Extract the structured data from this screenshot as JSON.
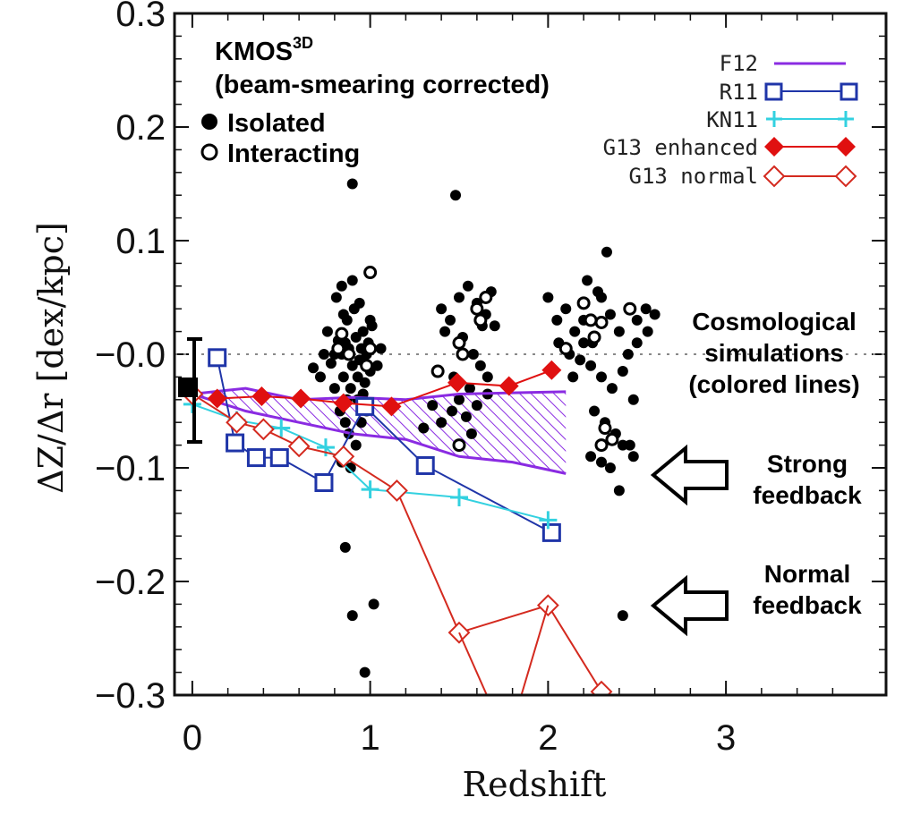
{
  "chart_data": {
    "type": "scatter",
    "xlabel": "Redshift",
    "ylabel": "ΔZ/Δr [dex/kpc]",
    "xlim": [
      -0.1,
      3.9
    ],
    "ylim": [
      -0.3,
      0.3
    ],
    "xticks": [
      "0",
      "1",
      "2",
      "3"
    ],
    "yticks": [
      "0.3",
      "0.2",
      "0.1",
      "−0.0",
      "−0.1",
      "−0.2",
      "−0.3"
    ],
    "survey_name": "KMOS",
    "survey_sup": "3D",
    "survey_note": "(beam-smearing corrected)",
    "marker_legend": [
      "Isolated",
      "Interacting"
    ],
    "annotations": {
      "cosmo": [
        "Cosmological",
        "simulations",
        "(colored lines)"
      ],
      "strong": [
        "Strong",
        "feedback"
      ],
      "normal": [
        "Normal",
        "feedback"
      ]
    },
    "colors": {
      "F12": "#8a2be2",
      "R11": "#1f35a8",
      "KN11": "#33d1e0",
      "G13_enhanced": "#e01010",
      "G13_normal": "#d42a1f"
    },
    "series": [
      {
        "name": "F12",
        "marker": "none",
        "x": [
          0.0,
          0.3,
          0.6,
          0.9,
          1.2,
          1.5,
          1.8,
          2.1
        ],
        "y": [
          -0.035,
          -0.03,
          -0.04,
          -0.038,
          -0.04,
          -0.035,
          -0.034,
          -0.033
        ]
      },
      {
        "name": "F12",
        "marker": "none",
        "x": [
          0.0,
          0.3,
          0.6,
          0.9,
          1.2,
          1.5,
          1.8,
          2.1
        ],
        "y": [
          -0.035,
          -0.05,
          -0.06,
          -0.07,
          -0.075,
          -0.09,
          -0.095,
          -0.105
        ]
      },
      {
        "name": "R11",
        "marker": "open-square",
        "x": [
          0.14,
          0.24,
          0.36,
          0.49,
          0.74,
          0.97,
          1.31,
          2.02
        ],
        "y": [
          -0.003,
          -0.078,
          -0.091,
          -0.091,
          -0.113,
          -0.046,
          -0.098,
          -0.157
        ]
      },
      {
        "name": "KN11",
        "marker": "plus",
        "x": [
          0.0,
          0.25,
          0.5,
          0.75,
          1.0,
          1.5,
          2.0
        ],
        "y": [
          -0.044,
          -0.058,
          -0.065,
          -0.082,
          -0.119,
          -0.126,
          -0.146
        ]
      },
      {
        "name": "G13 enhanced",
        "marker": "filled-diamond",
        "x": [
          0.14,
          0.39,
          0.61,
          0.85,
          1.12,
          1.49,
          1.78,
          2.02
        ],
        "y": [
          -0.039,
          -0.037,
          -0.039,
          -0.043,
          -0.046,
          -0.025,
          -0.028,
          -0.014
        ]
      },
      {
        "name": "G13 normal",
        "marker": "open-diamond",
        "x": [
          0.0,
          0.25,
          0.4,
          0.6,
          0.85,
          1.15,
          1.5,
          2.0,
          2.3
        ],
        "y": [
          -0.035,
          -0.06,
          -0.066,
          -0.081,
          -0.09,
          -0.12,
          -0.245,
          -0.221,
          -0.297
        ]
      }
    ],
    "hatched_region": {
      "x": [
        0.0,
        0.3,
        0.6,
        0.9,
        1.2,
        1.5,
        1.8,
        2.1
      ],
      "upper": [
        -0.035,
        -0.03,
        -0.04,
        -0.038,
        -0.04,
        -0.035,
        -0.034,
        -0.033
      ],
      "lower": [
        -0.035,
        -0.05,
        -0.06,
        -0.07,
        -0.075,
        -0.09,
        -0.095,
        -0.105
      ]
    },
    "G13_normal_offscale_x": [
      1.7,
      1.82
    ],
    "isolated": [
      [
        0.84,
        0.0
      ],
      [
        0.86,
        0.01
      ],
      [
        0.88,
        0.005
      ],
      [
        0.9,
        -0.01
      ],
      [
        0.92,
        0.015
      ],
      [
        0.94,
        -0.005
      ],
      [
        0.96,
        0.02
      ],
      [
        0.98,
        0.0
      ],
      [
        1.0,
        -0.015
      ],
      [
        0.85,
        -0.02
      ],
      [
        0.87,
        0.03
      ],
      [
        0.89,
        -0.03
      ],
      [
        0.91,
        0.04
      ],
      [
        0.93,
        -0.04
      ],
      [
        0.95,
        0.005
      ],
      [
        0.97,
        -0.025
      ],
      [
        0.99,
        0.01
      ],
      [
        1.01,
        0.025
      ],
      [
        0.82,
        0.012
      ],
      [
        0.78,
        -0.008
      ],
      [
        0.8,
        -0.03
      ],
      [
        0.76,
        0.02
      ],
      [
        0.83,
        -0.05
      ],
      [
        0.86,
        -0.06
      ],
      [
        0.88,
        -0.07
      ],
      [
        0.92,
        -0.08
      ],
      [
        0.95,
        -0.06
      ],
      [
        0.98,
        -0.05
      ],
      [
        0.9,
        0.065
      ],
      [
        0.84,
        0.06
      ],
      [
        0.81,
        0.05
      ],
      [
        0.94,
        0.045
      ],
      [
        0.89,
        -0.1
      ],
      [
        0.86,
        -0.17
      ],
      [
        0.9,
        -0.23
      ],
      [
        1.02,
        -0.22
      ],
      [
        0.97,
        -0.28
      ],
      [
        0.84,
        -0.095
      ],
      [
        0.9,
        0.15
      ],
      [
        1.04,
        -0.01
      ],
      [
        1.06,
        0.005
      ],
      [
        0.68,
        -0.012
      ],
      [
        0.74,
        0.0
      ],
      [
        0.72,
        -0.02
      ],
      [
        0.8,
        0.0
      ],
      [
        0.93,
        -0.02
      ],
      [
        0.87,
        -0.04
      ],
      [
        0.96,
        -0.035
      ],
      [
        1.0,
        0.03
      ],
      [
        0.85,
        0.035
      ],
      [
        1.4,
        0.04
      ],
      [
        1.45,
        0.03
      ],
      [
        1.5,
        0.05
      ],
      [
        1.55,
        0.06
      ],
      [
        1.6,
        0.045
      ],
      [
        1.65,
        0.035
      ],
      [
        1.7,
        0.025
      ],
      [
        1.52,
        0.015
      ],
      [
        1.58,
        0.0
      ],
      [
        1.62,
        -0.01
      ],
      [
        1.66,
        -0.02
      ],
      [
        1.56,
        -0.03
      ],
      [
        1.5,
        -0.04
      ],
      [
        1.46,
        -0.05
      ],
      [
        1.54,
        -0.055
      ],
      [
        1.6,
        -0.045
      ],
      [
        1.66,
        -0.035
      ],
      [
        1.4,
        -0.06
      ],
      [
        1.35,
        -0.045
      ],
      [
        1.3,
        -0.065
      ],
      [
        1.48,
        0.14
      ],
      [
        1.57,
        -0.07
      ],
      [
        1.42,
        0.02
      ],
      [
        1.68,
        0.055
      ],
      [
        1.63,
        0.025
      ],
      [
        1.47,
        -0.02
      ],
      [
        2.0,
        0.05
      ],
      [
        2.05,
        0.03
      ],
      [
        2.1,
        0.04
      ],
      [
        2.15,
        0.02
      ],
      [
        2.2,
        0.03
      ],
      [
        2.25,
        0.01
      ],
      [
        2.3,
        0.05
      ],
      [
        2.35,
        0.035
      ],
      [
        2.4,
        0.02
      ],
      [
        2.45,
        0.0
      ],
      [
        2.5,
        0.03
      ],
      [
        2.55,
        0.04
      ],
      [
        2.6,
        0.035
      ],
      [
        2.22,
        0.065
      ],
      [
        2.28,
        0.055
      ],
      [
        2.33,
        0.09
      ],
      [
        2.18,
        -0.005
      ],
      [
        2.24,
        -0.01
      ],
      [
        2.3,
        -0.02
      ],
      [
        2.36,
        -0.03
      ],
      [
        2.42,
        -0.015
      ],
      [
        2.48,
        -0.04
      ],
      [
        2.26,
        -0.05
      ],
      [
        2.32,
        -0.06
      ],
      [
        2.38,
        -0.07
      ],
      [
        2.42,
        -0.08
      ],
      [
        2.3,
        -0.095
      ],
      [
        2.35,
        -0.1
      ],
      [
        2.24,
        -0.09
      ],
      [
        2.46,
        -0.08
      ],
      [
        2.48,
        -0.09
      ],
      [
        2.4,
        -0.12
      ],
      [
        2.42,
        -0.23
      ],
      [
        2.12,
        0.0
      ],
      [
        2.06,
        0.01
      ],
      [
        2.2,
        0.01
      ],
      [
        2.14,
        -0.02
      ],
      [
        2.5,
        0.01
      ],
      [
        2.56,
        0.02
      ]
    ],
    "interacting": [
      [
        1.0,
        0.072
      ],
      [
        0.84,
        0.018
      ],
      [
        0.82,
        0.005
      ],
      [
        0.88,
        0.0
      ],
      [
        1.0,
        0.005
      ],
      [
        0.98,
        -0.01
      ],
      [
        1.6,
        0.04
      ],
      [
        1.62,
        0.03
      ],
      [
        1.65,
        0.05
      ],
      [
        1.5,
        0.01
      ],
      [
        1.52,
        0.0
      ],
      [
        1.38,
        -0.015
      ],
      [
        1.5,
        -0.08
      ],
      [
        2.2,
        0.045
      ],
      [
        2.24,
        0.03
      ],
      [
        2.3,
        0.028
      ],
      [
        2.26,
        0.015
      ],
      [
        2.1,
        0.005
      ],
      [
        2.32,
        -0.065
      ],
      [
        2.36,
        -0.075
      ],
      [
        2.3,
        -0.08
      ],
      [
        2.46,
        0.04
      ]
    ]
  }
}
